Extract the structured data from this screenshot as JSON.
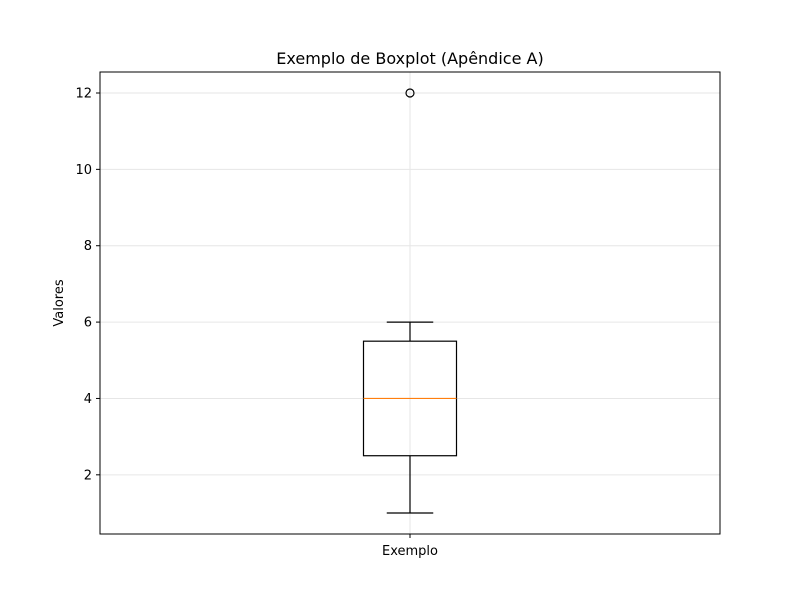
{
  "chart_data": {
    "type": "boxplot",
    "title": "Exemplo de Boxplot (Apêndice A)",
    "xlabel": "",
    "ylabel": "Valores",
    "categories": [
      "Exemplo"
    ],
    "boxes": [
      {
        "category": "Exemplo",
        "whisker_low": 1,
        "q1": 2.5,
        "median": 4,
        "q3": 5.5,
        "whisker_high": 6,
        "outliers": [
          12
        ]
      }
    ],
    "y_ticks": [
      2,
      4,
      6,
      8,
      10,
      12
    ],
    "ylim": [
      0.45,
      12.55
    ],
    "grid": true,
    "colors": {
      "box": "#000000",
      "median": "#ff7f0e",
      "grid": "#e6e6e6",
      "axes": "#000000"
    }
  }
}
